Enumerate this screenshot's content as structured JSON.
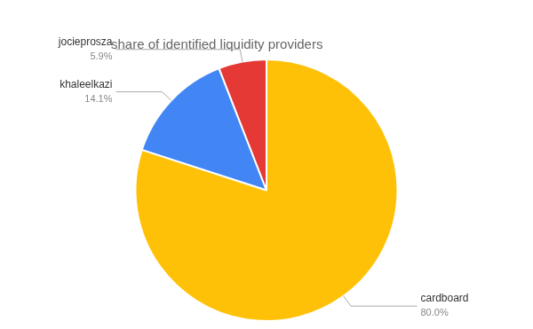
{
  "chart_data": {
    "type": "pie",
    "title": "share of identified liquidity providers",
    "categories": [
      "cardboard",
      "khaleelkazi",
      "jocieprosza"
    ],
    "values": [
      80.0,
      14.1,
      5.9
    ],
    "value_labels": [
      "80.0%",
      "14.1%",
      "5.9%"
    ],
    "colors": [
      "#FFC107",
      "#4285F4",
      "#E53935"
    ],
    "data_labels": true
  }
}
